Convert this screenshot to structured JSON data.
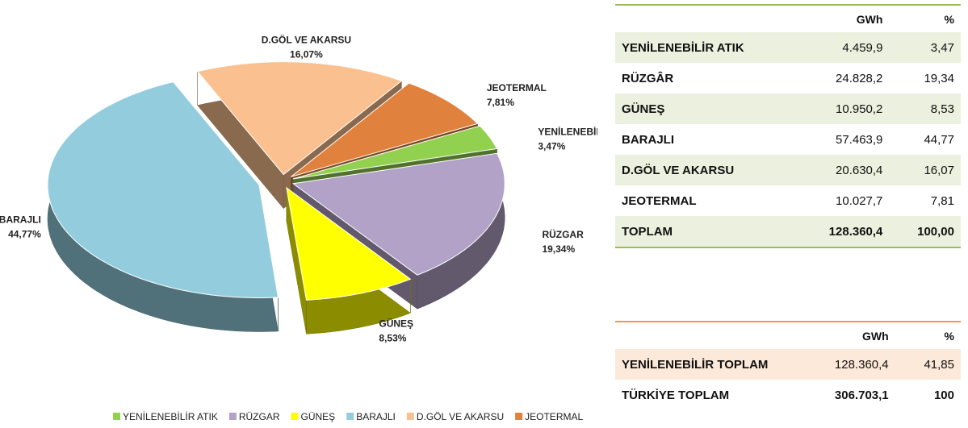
{
  "chart_data": {
    "type": "pie",
    "categories": [
      "YENİLENEBİLİR ATIK",
      "RÜZGAR",
      "GÜNEŞ",
      "BARAJLI",
      "D.GÖL VE AKARSU",
      "JEOTERMAL"
    ],
    "values": [
      3.47,
      19.34,
      8.53,
      44.77,
      16.07,
      7.81
    ],
    "value_labels": [
      "3,47%",
      "19,34%",
      "8,53%",
      "44,77%",
      "16,07%",
      "7,81%"
    ],
    "colors": [
      "#92d050",
      "#b3a2c7",
      "#ffff00",
      "#93cddd",
      "#fac090",
      "#e0823d"
    ],
    "legend": "bottom"
  },
  "table1": {
    "header": [
      "GWh",
      "%"
    ],
    "rows": [
      [
        "YENİLENEBİLİR ATIK",
        "4.459,9",
        "3,47"
      ],
      [
        "RÜZGÂR",
        "24.828,2",
        "19,34"
      ],
      [
        "GÜNEŞ",
        "10.950,2",
        "8,53"
      ],
      [
        "BARAJLI",
        "57.463,9",
        "44,77"
      ],
      [
        "D.GÖL VE AKARSU",
        "20.630,4",
        "16,07"
      ],
      [
        "JEOTERMAL",
        "10.027,7",
        "7,81"
      ],
      [
        "TOPLAM",
        "128.360,4",
        "100,00"
      ]
    ]
  },
  "table2": {
    "header": [
      "GWh",
      "%"
    ],
    "rows": [
      [
        "YENİLENEBİLİR TOPLAM",
        "128.360,4",
        "41,85"
      ],
      [
        "TÜRKİYE TOPLAM",
        "306.703,1",
        "100"
      ]
    ]
  }
}
